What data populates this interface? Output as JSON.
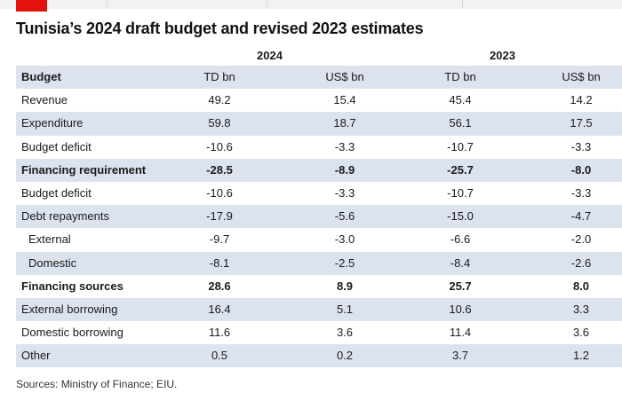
{
  "title": "Tunisia’s 2024 draft budget and revised 2023 estimates",
  "years": [
    "2024",
    "2023"
  ],
  "header": [
    "Budget",
    "TD bn",
    "US$ bn",
    "TD bn",
    "US$ bn"
  ],
  "rows": [
    {
      "label": "Revenue",
      "values": [
        "49.2",
        "15.4",
        "45.4",
        "14.2"
      ],
      "bold": false,
      "indent": false
    },
    {
      "label": "Expenditure",
      "values": [
        "59.8",
        "18.7",
        "56.1",
        "17.5"
      ],
      "bold": false,
      "indent": false
    },
    {
      "label": "Budget deficit",
      "values": [
        "-10.6",
        "-3.3",
        "-10.7",
        "-3.3"
      ],
      "bold": false,
      "indent": false
    },
    {
      "label": "Financing requirement",
      "values": [
        "-28.5",
        "-8.9",
        "-25.7",
        "-8.0"
      ],
      "bold": true,
      "indent": false
    },
    {
      "label": "Budget deficit",
      "values": [
        "-10.6",
        "-3.3",
        "-10.7",
        "-3.3"
      ],
      "bold": false,
      "indent": false
    },
    {
      "label": "Debt repayments",
      "values": [
        "-17.9",
        "-5.6",
        "-15.0",
        "-4.7"
      ],
      "bold": false,
      "indent": false
    },
    {
      "label": "External",
      "values": [
        "-9.7",
        "-3.0",
        "-6.6",
        "-2.0"
      ],
      "bold": false,
      "indent": true
    },
    {
      "label": "Domestic",
      "values": [
        "-8.1",
        "-2.5",
        "-8.4",
        "-2.6"
      ],
      "bold": false,
      "indent": true
    },
    {
      "label": "Financing sources",
      "values": [
        "28.6",
        "8.9",
        "25.7",
        "8.0"
      ],
      "bold": true,
      "indent": false
    },
    {
      "label": "External borrowing",
      "values": [
        "16.4",
        "5.1",
        "10.6",
        "3.3"
      ],
      "bold": false,
      "indent": false
    },
    {
      "label": "Domestic borrowing",
      "values": [
        "11.6",
        "3.6",
        "11.4",
        "3.6"
      ],
      "bold": false,
      "indent": false
    },
    {
      "label": "Other",
      "values": [
        "0.5",
        "0.2",
        "3.7",
        "1.2"
      ],
      "bold": false,
      "indent": false
    }
  ],
  "source": "Sources: Ministry of Finance; EIU.",
  "colors": {
    "accent": "#e3120b",
    "stripe": "#dce3ee"
  }
}
